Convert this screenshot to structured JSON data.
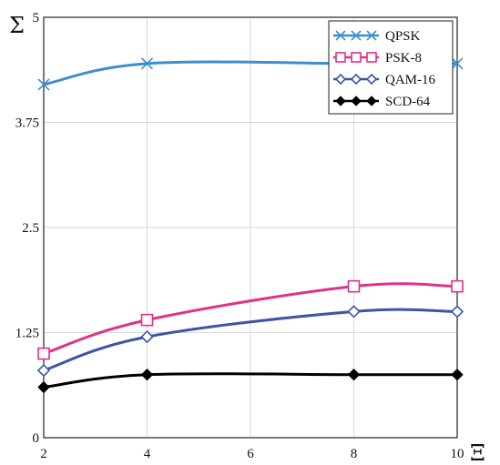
{
  "chart_data": {
    "type": "line",
    "title": "",
    "xlabel": "Ξ",
    "ylabel": "Σ",
    "x": [
      2,
      4,
      8,
      10
    ],
    "xlim": [
      2,
      10
    ],
    "ylim": [
      0,
      5
    ],
    "xticks": [
      2,
      4,
      6,
      8,
      10
    ],
    "yticks": [
      0,
      1.25,
      2.5,
      3.75,
      5
    ],
    "ytick_labels": [
      "0",
      "1.25",
      "2.5",
      "3.75",
      "5"
    ],
    "grid": true,
    "legend": "top-right",
    "series": [
      {
        "name": "QPSK",
        "values": [
          4.2,
          4.45,
          4.45,
          4.45
        ],
        "color": "#3a8fd0",
        "marker": "x"
      },
      {
        "name": "PSK-8",
        "values": [
          1.0,
          1.4,
          1.8,
          1.8
        ],
        "color": "#e0308a",
        "marker": "square"
      },
      {
        "name": "QAM-16",
        "values": [
          0.8,
          1.2,
          1.5,
          1.5
        ],
        "color": "#3c55a8",
        "marker": "diamond-open"
      },
      {
        "name": "SCD-64",
        "values": [
          0.6,
          0.75,
          0.75,
          0.75
        ],
        "color": "#000000",
        "marker": "diamond-filled"
      }
    ]
  }
}
